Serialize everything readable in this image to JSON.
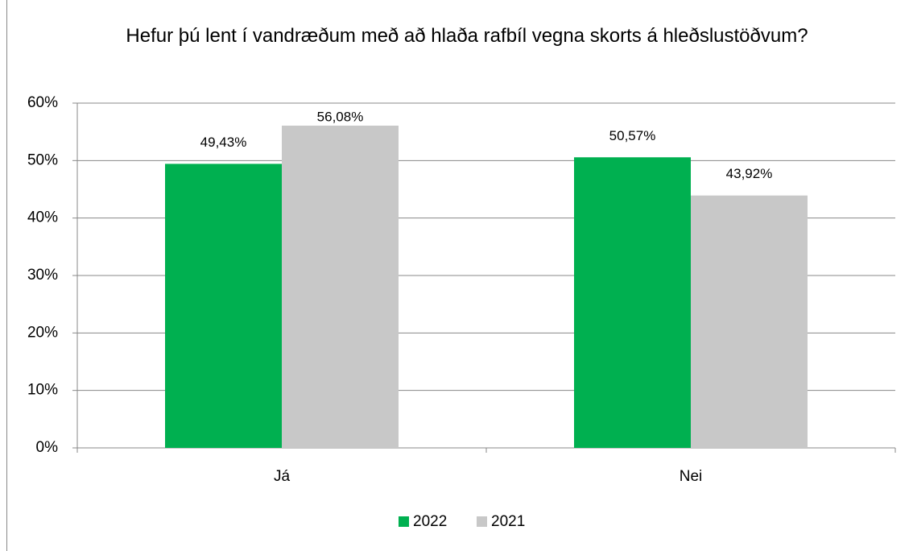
{
  "chart_data": {
    "type": "bar",
    "title": "Hefur þú lent í vandræðum með að hlaða rafbíl vegna skorts á hleðslustöðvum?",
    "categories": [
      "Já",
      "Nei"
    ],
    "series": [
      {
        "name": "2022",
        "color": "#00b050",
        "values": [
          49.43,
          50.57
        ],
        "value_labels": [
          "49,43%",
          "50,57%"
        ]
      },
      {
        "name": "2021",
        "color": "#c8c8c8",
        "values": [
          56.08,
          43.92
        ],
        "value_labels": [
          "56,08%",
          "43,92%"
        ]
      }
    ],
    "ylim": [
      0,
      60
    ],
    "yticks": [
      {
        "value": 0,
        "label": "0%"
      },
      {
        "value": 10,
        "label": "10%"
      },
      {
        "value": 20,
        "label": "20%"
      },
      {
        "value": 30,
        "label": "30%"
      },
      {
        "value": 40,
        "label": "40%"
      },
      {
        "value": 50,
        "label": "50%"
      },
      {
        "value": 60,
        "label": "60%"
      }
    ],
    "grid": true,
    "legend": "bottom"
  }
}
